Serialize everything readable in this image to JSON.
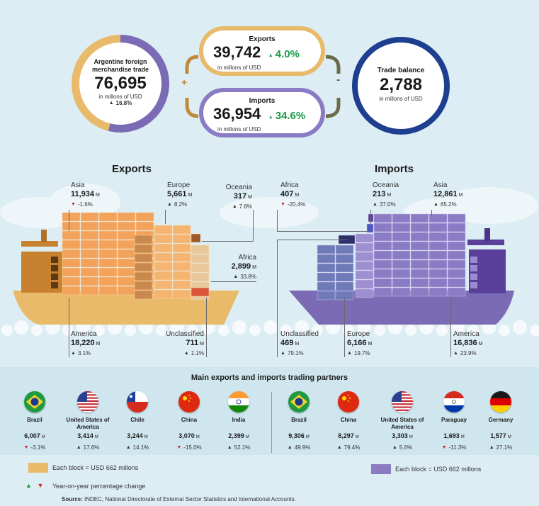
{
  "summary": {
    "foreign_trade": {
      "title": "Argentine foreign merchandise trade",
      "value": "76,695",
      "unit": "in millons of USD",
      "change": "16.8%"
    },
    "exports": {
      "title": "Exports",
      "value": "39,742",
      "unit": "in millons of USD",
      "change": "4.0%"
    },
    "imports": {
      "title": "Imports",
      "value": "36,954",
      "unit": "in millons of USD",
      "change": "34.6%"
    },
    "trade_balance": {
      "title": "Trade balance",
      "value": "2,788",
      "unit": "in millons of USD"
    },
    "plus_sign": "+",
    "minus_sign": "-"
  },
  "exports_ship": {
    "title": "Exports",
    "unit": "M",
    "regions": [
      {
        "name": "Asia",
        "value": "11,934",
        "change": "-1.6%",
        "dir": "down"
      },
      {
        "name": "Europe",
        "value": "5,661",
        "change": "8.2%",
        "dir": "up"
      },
      {
        "name": "Oceania",
        "value": "317",
        "change": "7.6%",
        "dir": "up"
      },
      {
        "name": "Africa",
        "value": "2,899",
        "change": "33.8%",
        "dir": "up"
      },
      {
        "name": "America",
        "value": "18,220",
        "change": "3.1%",
        "dir": "up"
      },
      {
        "name": "Unclassified",
        "value": "711",
        "change": "1.1%",
        "dir": "up"
      }
    ]
  },
  "imports_ship": {
    "title": "Imports",
    "unit": "M",
    "regions": [
      {
        "name": "Africa",
        "value": "407",
        "change": "-20.4%",
        "dir": "down"
      },
      {
        "name": "Oceania",
        "value": "213",
        "change": "37.0%",
        "dir": "up"
      },
      {
        "name": "Asia",
        "value": "12,861",
        "change": "65.2%",
        "dir": "up"
      },
      {
        "name": "Unclassified",
        "value": "469",
        "change": "79.1%",
        "dir": "up"
      },
      {
        "name": "Europe",
        "value": "6,166",
        "change": "19.7%",
        "dir": "up"
      },
      {
        "name": "America",
        "value": "16,836",
        "change": "23.9%",
        "dir": "up"
      }
    ]
  },
  "partners": {
    "title": "Main exports and imports trading partners",
    "unit": "M",
    "exports": [
      {
        "country": "Brazil",
        "value": "6,007",
        "change": "-3.1%",
        "dir": "down",
        "flag": "brazil-flag-icon"
      },
      {
        "country": "United States of America",
        "value": "3,414",
        "change": "17.6%",
        "dir": "up",
        "flag": "usa-flag-icon"
      },
      {
        "country": "Chile",
        "value": "3,244",
        "change": "14.1%",
        "dir": "up",
        "flag": "chile-flag-icon"
      },
      {
        "country": "China",
        "value": "3,070",
        "change": "-15.0%",
        "dir": "down",
        "flag": "china-flag-icon"
      },
      {
        "country": "India",
        "value": "2,399",
        "change": "52.1%",
        "dir": "up",
        "flag": "india-flag-icon"
      }
    ],
    "imports": [
      {
        "country": "Brazil",
        "value": "9,306",
        "change": "49.9%",
        "dir": "up",
        "flag": "brazil-flag-icon"
      },
      {
        "country": "China",
        "value": "8,297",
        "change": "79.4%",
        "dir": "up",
        "flag": "china-flag-icon"
      },
      {
        "country": "United States of America",
        "value": "3,303",
        "change": "5.6%",
        "dir": "up",
        "flag": "usa-flag-icon"
      },
      {
        "country": "Paraguay",
        "value": "1,693",
        "change": "-11.3%",
        "dir": "down",
        "flag": "paraguay-flag-icon"
      },
      {
        "country": "Germany",
        "value": "1,577",
        "change": "27.1%",
        "dir": "up",
        "flag": "germany-flag-icon"
      }
    ]
  },
  "legend": {
    "export_block": "Each block = USD 662 millons",
    "import_block": "Each block = USD 662 millons",
    "change_note": "Year-on-year percentage change",
    "source_label": "Source:",
    "source_text": "INDEC, National Directorate of External Sector Statistics and International Accounts."
  },
  "colors": {
    "export_accent": "#e8ba6a",
    "import_accent": "#8b7bc4",
    "balance_ring": "#1e3f8f",
    "up": "#1a9a4a",
    "down": "#c8242b"
  }
}
